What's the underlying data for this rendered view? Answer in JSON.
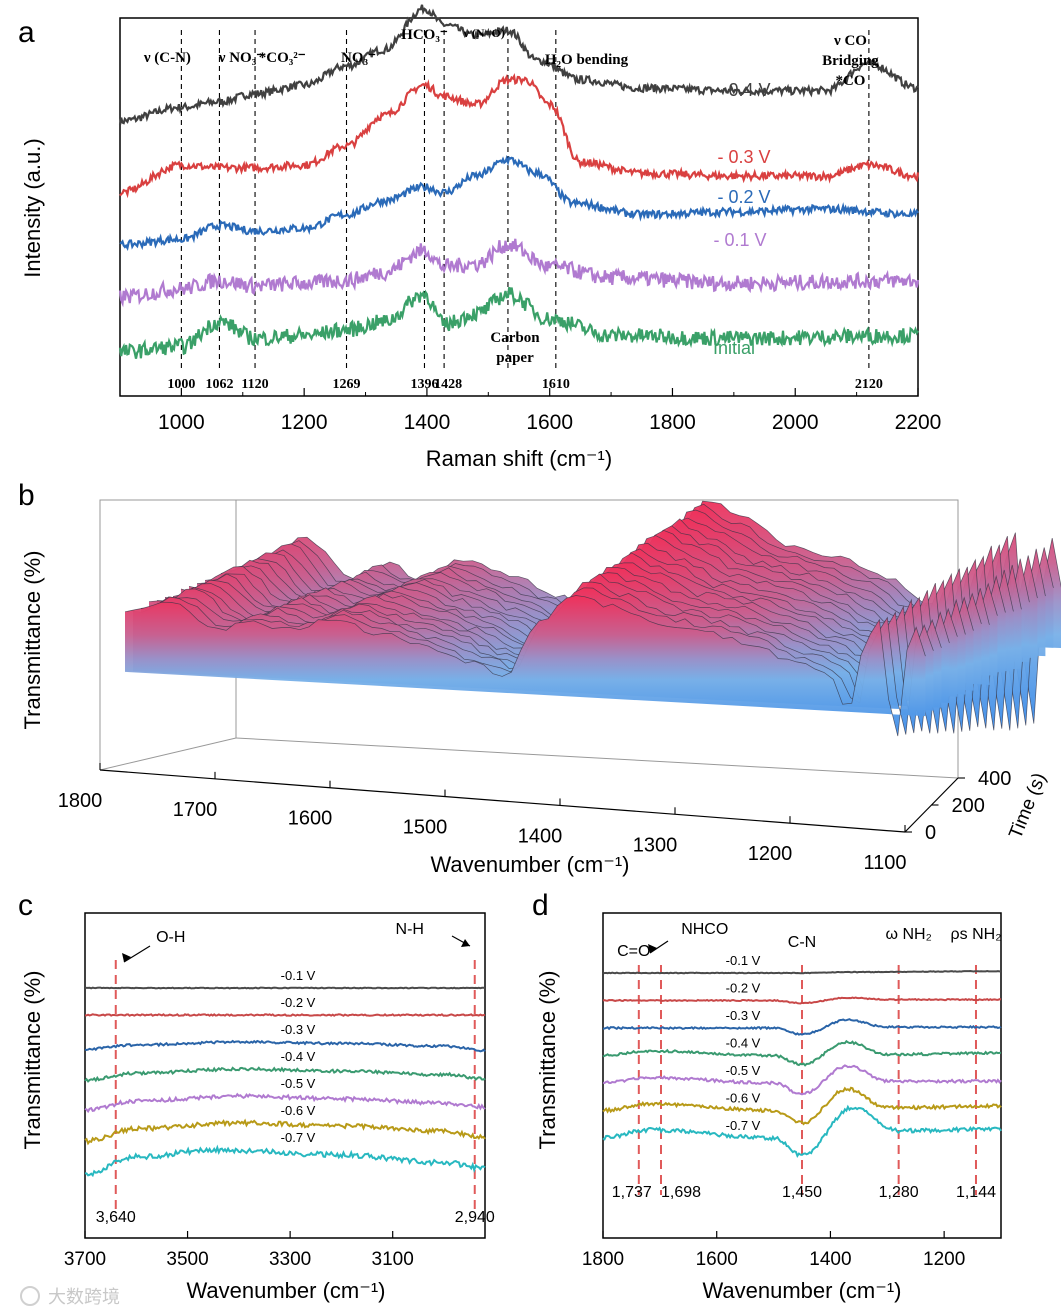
{
  "panels": {
    "a": {
      "letter": "a"
    },
    "b": {
      "letter": "b"
    },
    "c": {
      "letter": "c"
    },
    "d": {
      "letter": "d"
    }
  },
  "watermark": "大数跨境",
  "chart_data": [
    {
      "panel": "a",
      "type": "line",
      "xlabel": "Raman shift (cm⁻¹)",
      "ylabel": "Intensity (a.u.)",
      "xlim": [
        900,
        2200
      ],
      "xticks": [
        1000,
        1200,
        1400,
        1600,
        1800,
        2000,
        2200
      ],
      "peak_lines": [
        1000,
        1062,
        1120,
        1269,
        1396,
        1428,
        1532,
        1610,
        2120
      ],
      "peak_labels": [
        {
          "text": "1000",
          "x": 1000
        },
        {
          "text": "1062",
          "x": 1062
        },
        {
          "text": "1120",
          "x": 1120
        },
        {
          "text": "1269",
          "x": 1269
        },
        {
          "text": "1396",
          "x": 1396
        },
        {
          "text": "1428",
          "x": 1428
        },
        {
          "text": "1610",
          "x": 1610
        },
        {
          "text": "2120",
          "x": 2120
        }
      ],
      "band_labels": [
        {
          "text": "ν (C-N)",
          "x": 1000
        },
        {
          "text": "ν NO₃⁻",
          "x": 1062
        },
        {
          "text": "*CO₃²⁻",
          "x": 1130
        },
        {
          "text": "NO₃⁻",
          "x": 1269
        },
        {
          "text": "HCO₃⁻",
          "x": 1396
        },
        {
          "text": "ν (N=O)",
          "x": 1500
        },
        {
          "text": "H₂O bending",
          "x": 1650
        },
        {
          "text": "ν CO",
          "x": 2090
        },
        {
          "text": "Bridging",
          "x": 2090
        },
        {
          "text": "*CO",
          "x": 2090
        }
      ],
      "annotation": [
        "Carbon",
        "paper"
      ],
      "series": [
        {
          "name": "- 0.4 V",
          "color": "#404040",
          "offset": 4.0,
          "x": [
            900,
            1000,
            1062,
            1120,
            1200,
            1269,
            1330,
            1396,
            1428,
            1480,
            1532,
            1580,
            1650,
            1750,
            1900,
            2050,
            2120,
            2200
          ],
          "y": [
            0.2,
            0.45,
            0.55,
            0.7,
            0.85,
            1.2,
            1.5,
            2.25,
            1.95,
            1.75,
            1.85,
            1.3,
            0.95,
            0.8,
            0.75,
            0.75,
            1.25,
            0.8
          ]
        },
        {
          "name": "- 0.3 V",
          "color": "#d94040",
          "offset": 2.9,
          "x": [
            900,
            1000,
            1062,
            1120,
            1200,
            1269,
            1330,
            1396,
            1428,
            1480,
            1532,
            1560,
            1600,
            1650,
            1750,
            1900,
            2050,
            2120,
            2200
          ],
          "y": [
            0.0,
            0.5,
            0.45,
            0.45,
            0.5,
            0.85,
            1.4,
            1.95,
            1.75,
            1.6,
            2.05,
            2.05,
            1.6,
            0.55,
            0.35,
            0.3,
            0.3,
            0.5,
            0.3
          ]
        },
        {
          "name": "- 0.2 V",
          "color": "#2a6ab8",
          "offset": 1.95,
          "x": [
            900,
            1000,
            1062,
            1120,
            1200,
            1269,
            1330,
            1396,
            1428,
            1480,
            1532,
            1580,
            1640,
            1750,
            1900,
            2050,
            2200
          ],
          "y": [
            0.0,
            0.1,
            0.35,
            0.25,
            0.3,
            0.55,
            0.8,
            1.05,
            0.95,
            1.25,
            1.55,
            1.3,
            0.75,
            0.55,
            0.6,
            0.65,
            0.55
          ]
        },
        {
          "name": "- 0.1 V",
          "color": "#b07ad0",
          "offset": 1.0,
          "x": [
            900,
            1000,
            1062,
            1120,
            1200,
            1269,
            1330,
            1396,
            1428,
            1480,
            1532,
            1600,
            1700,
            1900,
            2200
          ],
          "y": [
            0.0,
            0.15,
            0.3,
            0.2,
            0.25,
            0.3,
            0.45,
            0.85,
            0.55,
            0.6,
            0.95,
            0.55,
            0.35,
            0.25,
            0.3
          ]
        },
        {
          "name": "Initial",
          "color": "#3aa068",
          "offset": 0.0,
          "x": [
            900,
            1000,
            1062,
            1120,
            1200,
            1269,
            1330,
            1396,
            1428,
            1480,
            1532,
            1600,
            1700,
            1900,
            2200
          ],
          "y": [
            0.0,
            0.1,
            0.55,
            0.25,
            0.3,
            0.4,
            0.55,
            1.05,
            0.5,
            0.7,
            1.05,
            0.6,
            0.3,
            0.25,
            0.3
          ]
        }
      ]
    },
    {
      "panel": "b",
      "type": "area",
      "xlabel": "Wavenumber (cm⁻¹)",
      "ylabel": "Transmittance (%)",
      "zlabel": "Time (s)",
      "xlim": [
        1800,
        1100
      ],
      "xticks": [
        1800,
        1700,
        1600,
        1500,
        1400,
        1300,
        1200,
        1100
      ],
      "time_ticks": [
        0,
        200,
        400
      ],
      "n_traces": 18
    },
    {
      "panel": "c",
      "type": "line",
      "xlabel": "Wavenumber (cm⁻¹)",
      "ylabel": "Transmittance (%)",
      "xlim": [
        3700,
        2920
      ],
      "xticks": [
        3700,
        3500,
        3300,
        3100
      ],
      "peak_lines": [
        3640,
        2940
      ],
      "peak_labels": [
        {
          "text": "3,640",
          "x": 3640
        },
        {
          "text": "2,940",
          "x": 2940
        }
      ],
      "band_labels": [
        {
          "text": "O-H",
          "x": 3640
        },
        {
          "text": "N-H",
          "x": 2940
        }
      ],
      "series": [
        {
          "name": "-0.1 V",
          "color": "#4a4a4a",
          "x": [
            3700,
            2920
          ],
          "y": [
            0.0,
            0.0
          ]
        },
        {
          "name": "-0.2 V",
          "color": "#c84848",
          "x": [
            3700,
            2920
          ],
          "y": [
            0.0,
            0.0
          ]
        },
        {
          "name": "-0.3 V",
          "color": "#2a64a8",
          "x": [
            3700,
            3600,
            3400,
            3200,
            3000,
            2920
          ],
          "y": [
            0.5,
            0.2,
            0.0,
            0.1,
            0.3,
            0.6
          ]
        },
        {
          "name": "-0.4 V",
          "color": "#3a9a70",
          "x": [
            3700,
            3600,
            3400,
            3200,
            3000,
            2920
          ],
          "y": [
            0.8,
            0.3,
            0.0,
            0.15,
            0.4,
            0.7
          ]
        },
        {
          "name": "-0.5 V",
          "color": "#b07ad0",
          "x": [
            3700,
            3600,
            3400,
            3200,
            3000,
            2920
          ],
          "y": [
            1.0,
            0.35,
            0.0,
            0.2,
            0.5,
            0.8
          ]
        },
        {
          "name": "-0.6 V",
          "color": "#b89a18",
          "x": [
            3700,
            3600,
            3400,
            3200,
            3000,
            2920
          ],
          "y": [
            1.3,
            0.4,
            0.0,
            0.2,
            0.6,
            1.0
          ]
        },
        {
          "name": "-0.7 V",
          "color": "#28b8c0",
          "x": [
            3700,
            3600,
            3450,
            3200,
            3000,
            2920
          ],
          "y": [
            1.7,
            0.5,
            0.0,
            0.35,
            0.9,
            1.3
          ]
        }
      ]
    },
    {
      "panel": "d",
      "type": "line",
      "xlabel": "Wavenumber (cm⁻¹)",
      "ylabel": "Transmittance (%)",
      "xlim": [
        1800,
        1100
      ],
      "xticks": [
        1800,
        1600,
        1400,
        1200
      ],
      "peak_lines": [
        1737,
        1698,
        1450,
        1280,
        1144
      ],
      "peak_labels": [
        {
          "text": "1,737",
          "x": 1737
        },
        {
          "text": "1,698",
          "x": 1698
        },
        {
          "text": "1,450",
          "x": 1450
        },
        {
          "text": "1,280",
          "x": 1280
        },
        {
          "text": "1,144",
          "x": 1144
        }
      ],
      "band_labels": [
        {
          "text": "C=O",
          "x": 1760
        },
        {
          "text": "NHCO",
          "x": 1665
        },
        {
          "text": "C-N",
          "x": 1450
        },
        {
          "text": "ω NH₂",
          "x": 1280
        },
        {
          "text": "ρs NH₂",
          "x": 1144
        }
      ],
      "series": [
        {
          "name": "-0.1 V",
          "color": "#4a4a4a",
          "x": [
            1800,
            1450,
            1370,
            1100
          ],
          "y": [
            0.0,
            0.0,
            0.05,
            0.1
          ]
        },
        {
          "name": "-0.2 V",
          "color": "#c84848",
          "x": [
            1800,
            1500,
            1450,
            1370,
            1300,
            1100
          ],
          "y": [
            0.0,
            0.0,
            -0.15,
            0.15,
            0.05,
            0.05
          ]
        },
        {
          "name": "-0.3 V",
          "color": "#2a64a8",
          "x": [
            1800,
            1500,
            1450,
            1370,
            1300,
            1100
          ],
          "y": [
            0.0,
            0.0,
            -0.35,
            0.45,
            0.05,
            0.05
          ]
        },
        {
          "name": "-0.4 V",
          "color": "#3a9a70",
          "x": [
            1800,
            1720,
            1500,
            1450,
            1370,
            1300,
            1100
          ],
          "y": [
            0.0,
            0.25,
            0.0,
            -0.5,
            0.75,
            0.05,
            0.15
          ]
        },
        {
          "name": "-0.5 V",
          "color": "#b07ad0",
          "x": [
            1800,
            1720,
            1500,
            1450,
            1370,
            1300,
            1100
          ],
          "y": [
            0.0,
            0.3,
            0.0,
            -0.6,
            0.95,
            0.1,
            0.1
          ]
        },
        {
          "name": "-0.6 V",
          "color": "#b89a18",
          "x": [
            1800,
            1720,
            1500,
            1450,
            1370,
            1300,
            1100
          ],
          "y": [
            0.0,
            0.35,
            0.0,
            -0.7,
            1.2,
            0.15,
            0.25
          ]
        },
        {
          "name": "-0.7 V",
          "color": "#28b8c0",
          "x": [
            1800,
            1720,
            1500,
            1450,
            1360,
            1280,
            1100
          ],
          "y": [
            0.0,
            0.45,
            0.0,
            -0.95,
            1.7,
            0.4,
            0.5
          ]
        }
      ]
    }
  ]
}
